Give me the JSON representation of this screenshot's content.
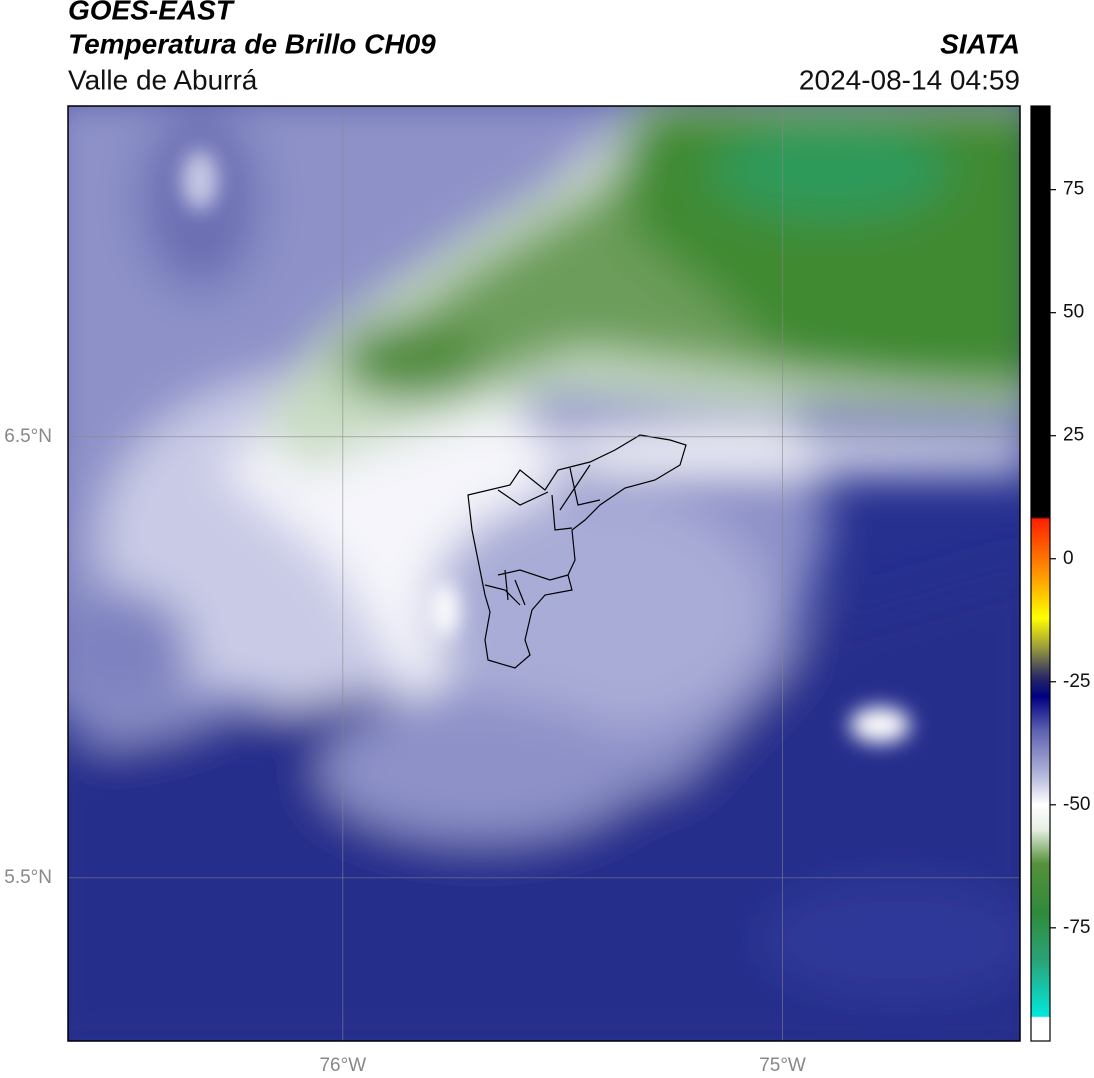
{
  "header": {
    "source": "GOES-EAST",
    "title": "Temperatura de Brillo CH09",
    "agency": "SIATA",
    "region": "Valle de Aburrá",
    "timestamp": "2024-08-14 04:59"
  },
  "map": {
    "xlim": [
      -76.625,
      -74.46
    ],
    "ylim": [
      5.13,
      7.25
    ],
    "xticks": [
      {
        "value": -76,
        "label": "76°W"
      },
      {
        "value": -75,
        "label": "75°W"
      }
    ],
    "yticks": [
      {
        "value": 6.5,
        "label": "6.5°N"
      },
      {
        "value": 5.5,
        "label": "5.5°N"
      }
    ],
    "grid": true
  },
  "colorbar": {
    "range": [
      -98,
      92
    ],
    "ticks": [
      75,
      50,
      25,
      0,
      -25,
      -50,
      -75
    ],
    "stops": [
      {
        "value": -98,
        "color": "#ffffff"
      },
      {
        "value": -93.2,
        "color": "#ffffff"
      },
      {
        "value": -93,
        "color": "#00e8dc"
      },
      {
        "value": -82,
        "color": "#2aa57a"
      },
      {
        "value": -72,
        "color": "#2f8a3c"
      },
      {
        "value": -62,
        "color": "#55913a"
      },
      {
        "value": -55,
        "color": "#e6efe4"
      },
      {
        "value": -50,
        "color": "#ffffff"
      },
      {
        "value": -44,
        "color": "#b4b7da"
      },
      {
        "value": -35,
        "color": "#5d62b2"
      },
      {
        "value": -28,
        "color": "#000080"
      },
      {
        "value": -24,
        "color": "#2a2a66"
      },
      {
        "value": -18,
        "color": "#9c9c3c"
      },
      {
        "value": -12,
        "color": "#ffff00"
      },
      {
        "value": -4,
        "color": "#ffa000"
      },
      {
        "value": 8,
        "color": "#ff2000"
      },
      {
        "value": 8.5,
        "color": "#000000"
      },
      {
        "value": 92,
        "color": "#000000"
      }
    ]
  }
}
